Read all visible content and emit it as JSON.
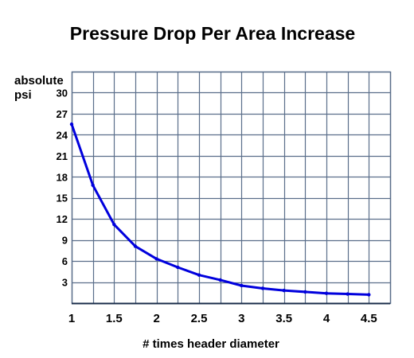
{
  "chart_data": {
    "type": "line",
    "title": "Pressure Drop Per Area Increase",
    "xlabel": "# times header diameter",
    "ylabel_line1": "absolute",
    "ylabel_line2": "psi",
    "xlim": [
      1,
      4.75
    ],
    "ylim": [
      0,
      33
    ],
    "x_ticks": [
      1,
      1.5,
      2,
      2.5,
      3,
      3.5,
      4,
      4.5
    ],
    "x_tick_labels": [
      "1",
      "1.5",
      "2",
      "2.5",
      "3",
      "3.5",
      "4",
      "4.5"
    ],
    "y_ticks": [
      3,
      6,
      9,
      12,
      15,
      18,
      21,
      24,
      27,
      30
    ],
    "y_tick_labels": [
      "3",
      "6",
      "9",
      "12",
      "15",
      "18",
      "21",
      "24",
      "27",
      "30"
    ],
    "grid": true,
    "grid_step_x": 0.25,
    "grid_step_y": 3,
    "series": [
      {
        "color": "#0000dd",
        "x": [
          1,
          1.25,
          1.5,
          1.75,
          2,
          2.25,
          2.5,
          2.75,
          3,
          3.25,
          3.5,
          3.75,
          4,
          4.25,
          4.5
        ],
        "y": [
          25.5,
          16.8,
          11.2,
          8.1,
          6.3,
          5.1,
          4.0,
          3.3,
          2.5,
          2.1,
          1.8,
          1.6,
          1.4,
          1.3,
          1.2
        ]
      }
    ]
  },
  "colors": {
    "grid": "#5a6e8a",
    "line": "#0000dd",
    "text": "#000000"
  }
}
